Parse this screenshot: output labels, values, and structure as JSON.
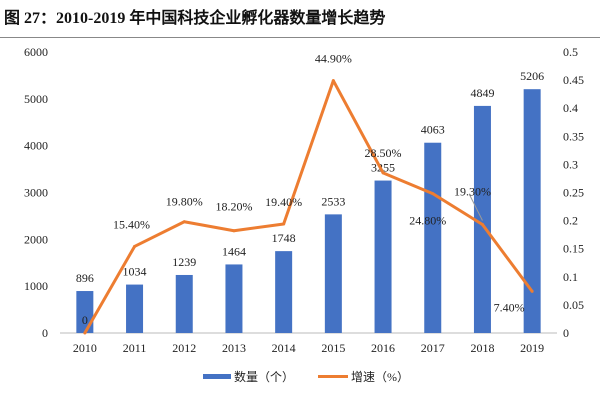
{
  "title": "图 27：2010-2019 年中国科技企业孵化器数量增长趋势",
  "chart_data": {
    "type": "bar+line",
    "title": "图 27：2010-2019 年中国科技企业孵化器数量增长趋势",
    "categories": [
      "2010",
      "2011",
      "2012",
      "2013",
      "2014",
      "2015",
      "2016",
      "2017",
      "2018",
      "2019"
    ],
    "series": [
      {
        "name": "数量（个）",
        "type": "bar",
        "axis": "left",
        "color": "#4472C4",
        "values": [
          896,
          1034,
          1239,
          1464,
          1748,
          2533,
          3255,
          4063,
          4849,
          5206
        ],
        "labels": [
          "896",
          "1034",
          "1239",
          "1464",
          "1748",
          "2533",
          "3255",
          "4063",
          "4849",
          "5206"
        ]
      },
      {
        "name": "增速（%）",
        "type": "line",
        "axis": "right",
        "color": "#ED7D31",
        "values": [
          0,
          0.154,
          0.198,
          0.182,
          0.194,
          0.449,
          0.285,
          0.248,
          0.193,
          0.074
        ],
        "labels": [
          "0",
          "15.40%",
          "19.80%",
          "18.20%",
          "19.40%",
          "44.90%",
          "28.50%",
          "24.80%",
          "19.30%",
          "7.40%"
        ]
      }
    ],
    "y_left": {
      "range": [
        0,
        6000
      ],
      "ticks": [
        "0",
        "1000",
        "2000",
        "3000",
        "4000",
        "5000",
        "6000"
      ]
    },
    "y_right": {
      "range": [
        0,
        0.5
      ],
      "ticks": [
        "0",
        "0.05",
        "0.1",
        "0.15",
        "0.2",
        "0.25",
        "0.3",
        "0.35",
        "0.4",
        "0.45",
        "0.5"
      ]
    },
    "grid": false,
    "legend": "bottom"
  }
}
